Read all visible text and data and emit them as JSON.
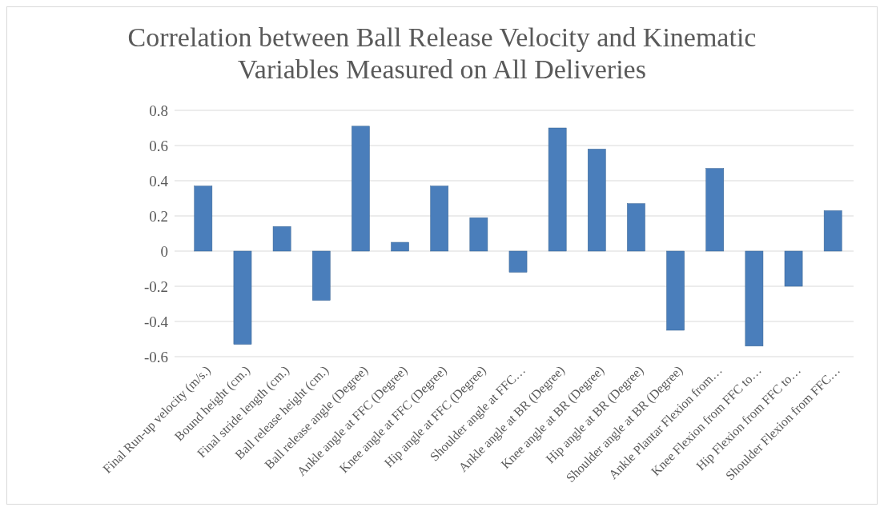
{
  "chart_data": {
    "type": "bar",
    "title": "Correlation between Ball Release Velocity and Kinematic Variables Measured on All Deliveries",
    "categories": [
      "Final Run-up velocity (m/s.)",
      "Bound height (cm.)",
      "Final stride length (cm.)",
      "Ball release height (cm.)",
      "Ball release angle (Degree)",
      "Ankle angle at FFC (Degree)",
      "Knee angle at FFC (Degree)",
      "Hip angle at FFC (Degree)",
      "Shoulder angle at FFC…",
      "Ankle angle at BR (Degree)",
      "Knee angle at BR (Degree)",
      "Hip angle at BR (Degree)",
      "Shoulder angle at BR (Degree)",
      "Ankle Plantar Flexion from…",
      "Knee Flexion from FFC to…",
      "Hip Flexion from FFC to…",
      "Shoulder Flexion from FFC…"
    ],
    "values": [
      0.37,
      -0.53,
      0.14,
      -0.28,
      0.71,
      0.05,
      0.37,
      0.19,
      -0.12,
      0.7,
      0.58,
      0.27,
      -0.45,
      0.47,
      -0.54,
      -0.2,
      0.23
    ],
    "color": "#4a7ebb",
    "ylim": [
      -0.6,
      0.8
    ],
    "yticks": [
      -0.6,
      -0.4,
      -0.2,
      0,
      0.2,
      0.4,
      0.6,
      0.8
    ],
    "grid": "y"
  }
}
